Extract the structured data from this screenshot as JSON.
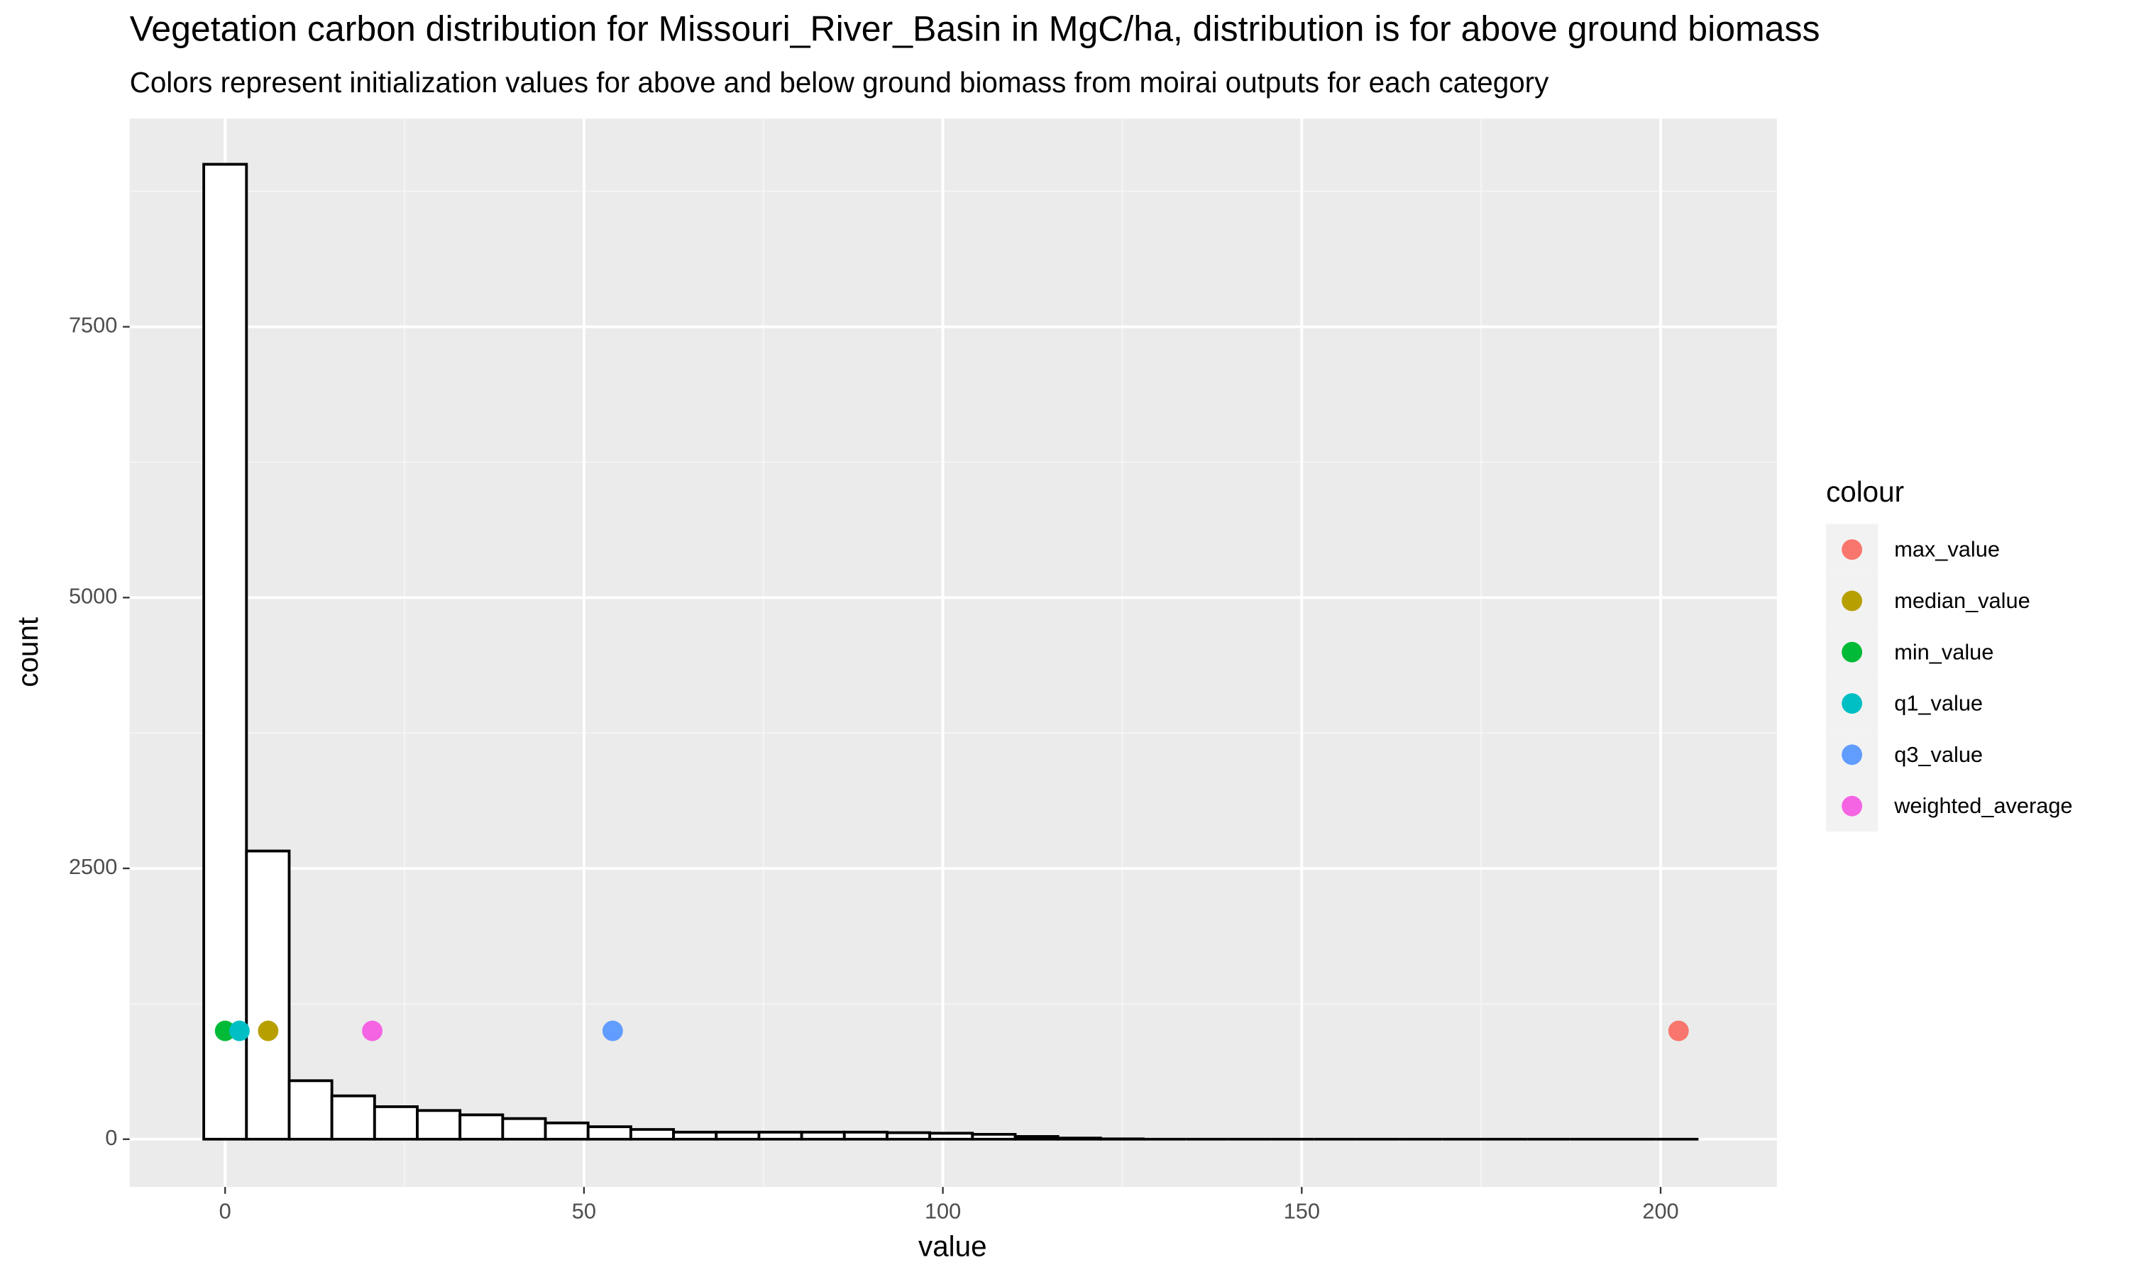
{
  "chart_data": {
    "type": "histogram",
    "title": "Vegetation carbon distribution for Missouri_River_Basin in MgC/ha, distribution is for above ground biomass",
    "subtitle": "Colors represent initialization values for above and below ground biomass from moirai outputs for each category",
    "x_label": "value",
    "y_label": "count",
    "bins": [
      -2.975,
      2.975,
      8.925,
      14.875,
      20.825,
      26.775,
      32.725,
      38.675,
      44.625,
      50.575,
      56.525,
      62.475,
      68.425,
      74.375,
      80.325,
      86.275,
      92.225,
      98.175,
      104.125,
      110.075,
      116.025,
      121.975,
      127.925,
      133.875,
      139.825,
      145.775,
      151.725,
      157.675,
      163.625,
      169.575,
      175.525,
      181.475,
      187.425,
      193.375,
      199.325,
      205.275
    ],
    "counts": [
      9000,
      2660,
      540,
      400,
      300,
      265,
      225,
      190,
      150,
      115,
      90,
      65,
      65,
      65,
      65,
      65,
      60,
      55,
      45,
      25,
      10,
      3,
      0,
      0,
      0,
      0,
      0,
      0,
      0,
      0,
      0,
      0,
      0,
      0,
      0
    ],
    "bar_fill": "#ffffff",
    "bar_edge": "#000000",
    "legend_title": "colour",
    "series": [
      {
        "name": "max_value",
        "color": "#F8766D",
        "x": [
          202.5
        ],
        "values": [
          1000
        ]
      },
      {
        "name": "median_value",
        "color": "#B79F00",
        "x": [
          6
        ],
        "values": [
          1000
        ]
      },
      {
        "name": "min_value",
        "color": "#00BA38",
        "x": [
          0
        ],
        "values": [
          1000
        ]
      },
      {
        "name": "q1_value",
        "color": "#00BFC4",
        "x": [
          2
        ],
        "values": [
          1000
        ]
      },
      {
        "name": "q3_value",
        "color": "#619CFF",
        "x": [
          54
        ],
        "values": [
          1000
        ]
      },
      {
        "name": "weighted_average",
        "color": "#F564E3",
        "x": [
          20.5
        ],
        "values": [
          1000
        ]
      }
    ],
    "xlim": [
      -13.3,
      216.2
    ],
    "ylim": [
      -441,
      9421
    ],
    "xticks": [
      0,
      50,
      100,
      150,
      200
    ],
    "yticks": [
      0,
      2500,
      5000,
      7500
    ],
    "xminor": [
      25,
      75,
      125,
      175
    ],
    "yminor": [
      1250,
      3750,
      6250,
      8750
    ],
    "grid": true
  }
}
